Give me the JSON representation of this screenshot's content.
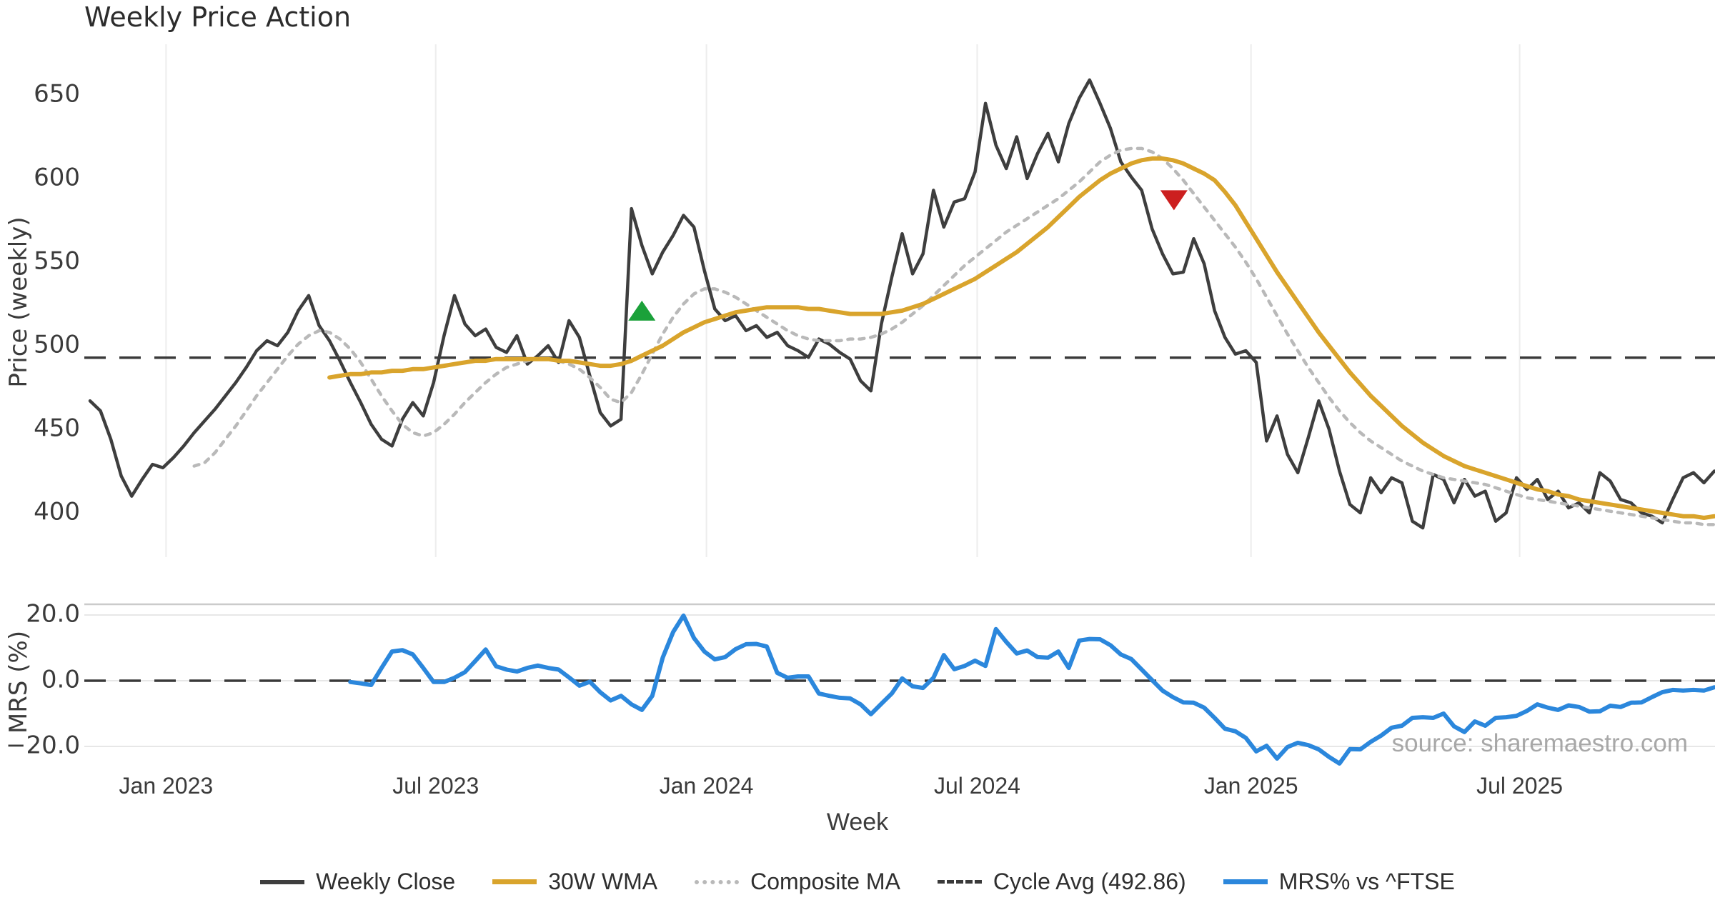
{
  "title": "Weekly Price Action",
  "watermark": "source: sharemaestro.com",
  "colors": {
    "close": "#3e3e3e",
    "wma": "#d9a42c",
    "composite": "#b9b9b9",
    "cycle_dash": "#3a3a3a",
    "mrs": "#2b87dc",
    "buy_marker": "#1ba13a",
    "sell_marker": "#cc1f1f",
    "grid": "#ededed",
    "grid_minor": "#e7e7e7",
    "panel_border": "#cbcbcb",
    "text": "#3b3b3b",
    "watermark": "#999999"
  },
  "chart_data": {
    "type": "line",
    "xlabel": "Week",
    "x_ticks": [
      {
        "label": "Jan 2023",
        "t": 7.3
      },
      {
        "label": "Jul 2023",
        "t": 33.2
      },
      {
        "label": "Jan 2024",
        "t": 59.2
      },
      {
        "label": "Jul 2024",
        "t": 85.2
      },
      {
        "label": "Jan 2025",
        "t": 111.5
      },
      {
        "label": "Jul 2025",
        "t": 137.3
      }
    ],
    "weeks_total": 156,
    "price_panel": {
      "ylabel": "Price (weekly)",
      "yticks": [
        {
          "label": "650",
          "v": 650
        },
        {
          "label": "600",
          "v": 600
        },
        {
          "label": "550",
          "v": 550
        },
        {
          "label": "500",
          "v": 500
        },
        {
          "label": "450",
          "v": 450
        },
        {
          "label": "400",
          "v": 400
        }
      ],
      "ylim": [
        374,
        681
      ],
      "cycle_avg": 492.86,
      "series": [
        {
          "name": "Weekly Close",
          "style": "solid-dark",
          "t0": 0,
          "values": [
            467,
            461,
            444,
            422,
            410,
            420,
            429,
            427,
            433,
            440,
            448,
            455,
            462,
            470,
            478,
            487,
            497,
            503,
            500,
            508,
            521,
            530,
            512,
            503,
            491,
            478,
            466,
            453,
            444,
            440,
            456,
            466,
            458,
            478,
            506,
            530,
            513,
            506,
            510,
            499,
            496,
            506,
            489,
            494,
            500,
            490,
            515,
            505,
            482,
            460,
            452,
            456,
            582,
            560,
            543,
            556,
            566,
            578,
            571,
            545,
            522,
            515,
            518,
            509,
            512,
            505,
            508,
            500,
            497,
            493,
            504,
            501,
            496,
            492,
            479,
            473,
            513,
            541,
            567,
            543,
            555,
            593,
            571,
            586,
            588,
            604,
            645,
            620,
            606,
            625,
            600,
            615,
            627,
            610,
            633,
            648,
            659,
            645,
            630,
            610,
            601,
            593,
            570,
            555,
            543,
            544,
            564,
            549,
            521,
            505,
            495,
            497,
            490,
            443,
            458,
            435,
            424,
            445,
            467,
            450,
            425,
            405,
            400,
            421,
            412,
            421,
            418,
            395,
            391,
            423,
            420,
            406,
            420,
            410,
            413,
            395,
            400,
            421,
            414,
            420,
            408,
            413,
            403,
            406,
            400,
            424,
            419,
            408,
            406,
            400,
            398,
            394,
            408,
            421,
            424,
            418,
            425
          ]
        },
        {
          "name": "30W WMA",
          "style": "solid-gold",
          "t0": 23,
          "values": [
            481,
            482,
            483,
            483,
            484,
            484,
            485,
            485,
            486,
            486,
            487,
            488,
            489,
            490,
            491,
            491,
            492,
            492,
            492,
            492,
            492,
            492,
            491,
            491,
            490,
            489,
            488,
            488,
            489,
            491,
            494,
            497,
            500,
            504,
            508,
            511,
            514,
            516,
            518,
            520,
            521,
            522,
            523,
            523,
            523,
            523,
            522,
            522,
            521,
            520,
            519,
            519,
            519,
            519,
            520,
            521,
            523,
            525,
            528,
            531,
            534,
            537,
            540,
            544,
            548,
            552,
            556,
            561,
            566,
            571,
            577,
            583,
            589,
            594,
            599,
            603,
            606,
            609,
            611,
            612,
            612,
            611,
            609,
            606,
            603,
            599,
            592,
            584,
            574,
            564,
            554,
            544,
            535,
            526,
            517,
            508,
            500,
            492,
            484,
            477,
            470,
            464,
            458,
            452,
            447,
            442,
            438,
            434,
            431,
            428,
            426,
            424,
            422,
            420,
            418,
            416,
            414,
            413,
            411,
            410,
            408,
            407,
            406,
            405,
            404,
            403,
            402,
            401,
            400,
            399,
            398,
            398,
            397,
            398
          ]
        },
        {
          "name": "Composite MA",
          "style": "dotted",
          "t0": 10,
          "values": [
            428,
            430,
            436,
            444,
            452,
            461,
            470,
            478,
            486,
            494,
            501,
            506,
            509,
            508,
            504,
            498,
            490,
            480,
            470,
            461,
            453,
            448,
            446,
            448,
            453,
            459,
            466,
            472,
            478,
            483,
            487,
            489,
            491,
            492,
            492,
            491,
            489,
            486,
            481,
            475,
            468,
            466,
            472,
            483,
            495,
            507,
            517,
            525,
            531,
            534,
            534,
            532,
            529,
            525,
            521,
            517,
            513,
            509,
            506,
            504,
            503,
            503,
            503,
            504,
            504,
            505,
            507,
            510,
            514,
            519,
            524,
            530,
            536,
            542,
            548,
            553,
            558,
            563,
            568,
            572,
            576,
            580,
            584,
            588,
            593,
            598,
            604,
            610,
            614,
            617,
            618,
            618,
            616,
            612,
            606,
            599,
            591,
            583,
            575,
            567,
            559,
            550,
            540,
            529,
            518,
            507,
            497,
            487,
            478,
            469,
            461,
            454,
            448,
            443,
            439,
            435,
            431,
            428,
            425,
            423,
            421,
            420,
            419,
            418,
            417,
            415,
            413,
            411,
            409,
            408,
            407,
            406,
            405,
            404,
            403,
            402,
            401,
            400,
            399,
            398,
            397,
            396,
            395,
            394,
            394,
            393,
            393
          ]
        }
      ],
      "markers": [
        {
          "type": "buy-triangle-up",
          "t": 53,
          "price": 521
        },
        {
          "type": "sell-triangle-down",
          "t": 104.1,
          "price": 587
        }
      ]
    },
    "mrs_panel": {
      "ylabel": "MRS (%)",
      "yticks": [
        {
          "label": "20.0",
          "v": 20
        },
        {
          "label": "0.0",
          "v": 0
        },
        {
          "label": "−20.0",
          "v": -20
        }
      ],
      "ylim": [
        -26.5,
        23.5
      ],
      "zero_line_dashed": true,
      "series": [
        {
          "name": "MRS% vs ^FTSE",
          "style": "solid-blue",
          "t0": 25,
          "values": [
            -0.4,
            -0.8,
            -1.3,
            3.9,
            8.9,
            9.3,
            8.0,
            3.9,
            -0.4,
            -0.4,
            0.9,
            2.6,
            6.0,
            9.5,
            4.4,
            3.4,
            2.8,
            3.9,
            4.6,
            3.9,
            3.4,
            1.0,
            -1.5,
            -0.3,
            -3.5,
            -6.0,
            -4.6,
            -7.2,
            -8.9,
            -4.6,
            7.0,
            14.8,
            19.8,
            13.0,
            8.9,
            6.5,
            7.2,
            9.6,
            11.1,
            11.2,
            10.4,
            2.4,
            0.9,
            1.3,
            1.3,
            -3.9,
            -4.6,
            -5.2,
            -5.4,
            -7.2,
            -10.2,
            -7.0,
            -3.9,
            0.7,
            -1.7,
            -2.2,
            0.9,
            7.8,
            3.5,
            4.5,
            6.1,
            4.5,
            15.7,
            11.8,
            8.3,
            9.2,
            7.2,
            7.0,
            8.9,
            3.9,
            12.2,
            12.7,
            12.6,
            10.8,
            8.0,
            6.6,
            3.4,
            0.2,
            -3.0,
            -5.0,
            -6.6,
            -6.7,
            -8.2,
            -11.3,
            -14.6,
            -15.4,
            -17.4,
            -21.5,
            -19.8,
            -23.7,
            -20.2,
            -18.9,
            -19.6,
            -20.9,
            -23.2,
            -25.2,
            -20.8,
            -20.9,
            -18.6,
            -16.7,
            -14.3,
            -13.7,
            -11.3,
            -11.1,
            -11.3,
            -10.0,
            -13.9,
            -15.6,
            -12.4,
            -13.7,
            -11.3,
            -11.1,
            -10.7,
            -9.2,
            -7.2,
            -8.2,
            -8.9,
            -7.5,
            -8.0,
            -9.4,
            -9.3,
            -7.6,
            -8.0,
            -6.7,
            -6.6,
            -5.0,
            -3.5,
            -2.8,
            -3.0,
            -2.8,
            -3.0,
            -2.0
          ]
        }
      ]
    }
  },
  "legend": [
    {
      "label": "Weekly Close",
      "style": "solid-dark"
    },
    {
      "label": "30W WMA",
      "style": "solid-gold"
    },
    {
      "label": "Composite MA",
      "style": "dotted"
    },
    {
      "label": "Cycle Avg (492.86)",
      "style": "dashed"
    },
    {
      "label": "MRS% vs ^FTSE",
      "style": "solid-blue"
    }
  ]
}
